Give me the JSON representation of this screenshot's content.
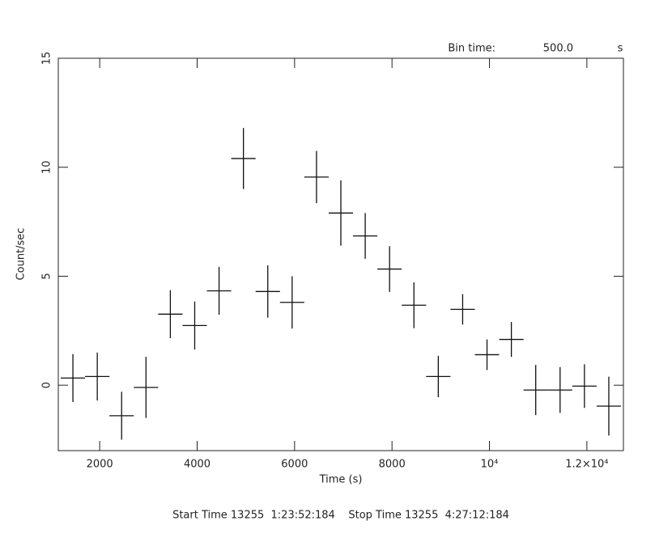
{
  "chart_data": {
    "type": "errorbar",
    "bin_time_label": "Bin time:",
    "bin_time": {
      "value": 500,
      "label": "500.0"
    },
    "bin_time_unit": "s",
    "x_label": "Time (s)",
    "y_label": "Count/sec",
    "footer": "Start Time 13255  1:23:52:184    Stop Time 13255  4:27:12:184",
    "xlim": [
      1150,
      12750
    ],
    "ylim": [
      -3,
      15
    ],
    "xticks": [
      2000,
      4000,
      6000,
      8000,
      {
        "value": 10000,
        "label": "10⁴"
      },
      {
        "value": 12000,
        "label": "1.2×10⁴"
      }
    ],
    "yticks": [
      0,
      5,
      10,
      15
    ],
    "x": [
      1450,
      1950,
      2450,
      2950,
      3450,
      3950,
      4450,
      4950,
      5450,
      5950,
      6450,
      6950,
      7450,
      7950,
      8450,
      8950,
      9450,
      9950,
      10450,
      10950,
      11450,
      11950,
      12450
    ],
    "series": [
      {
        "color": "#111111",
        "values": [
          0.33,
          0.4,
          -1.4,
          -0.1,
          3.26,
          2.74,
          4.33,
          10.4,
          4.3,
          3.8,
          9.55,
          7.9,
          6.85,
          5.33,
          3.67,
          0.4,
          3.48,
          1.4,
          2.1,
          -0.22,
          -0.22,
          -0.04,
          -0.96
        ],
        "yerr": [
          1.1,
          1.1,
          1.1,
          1.4,
          1.1,
          1.1,
          1.1,
          1.4,
          1.2,
          1.2,
          1.2,
          1.5,
          1.05,
          1.05,
          1.05,
          0.95,
          0.7,
          0.7,
          0.8,
          1.15,
          1.05,
          1.0,
          1.35
        ]
      }
    ]
  }
}
